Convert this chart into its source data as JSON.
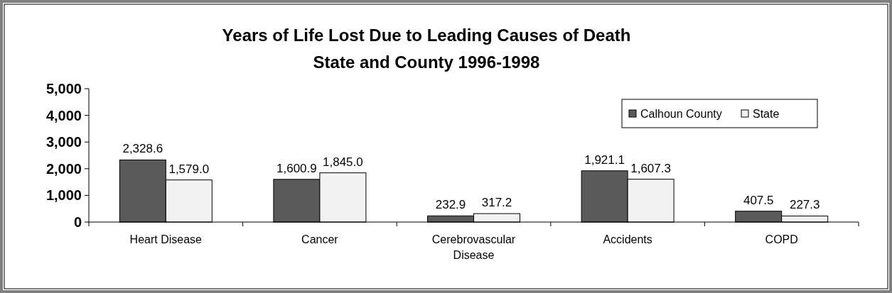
{
  "chart_data": {
    "type": "bar",
    "title": "Years of Life Lost Due to Leading Causes of Death",
    "subtitle": "State and County 1996-1998",
    "categories": [
      "Heart Disease",
      "Cancer",
      "Cerebrovascular Disease",
      "Accidents",
      "COPD"
    ],
    "series": [
      {
        "name": "Calhoun County",
        "color": "#5a5a5a",
        "values": [
          2328.6,
          1600.9,
          232.9,
          1921.1,
          407.5
        ],
        "value_labels": [
          "2,328.6",
          "1,600.9",
          "232.9",
          "1,921.1",
          "407.5"
        ]
      },
      {
        "name": "State",
        "color": "#f2f2f2",
        "values": [
          1579.0,
          1845.0,
          317.2,
          1607.3,
          227.3
        ],
        "value_labels": [
          "1,579.0",
          "1,845.0",
          "317.2",
          "1,607.3",
          "227.3"
        ]
      }
    ],
    "ylim": [
      0,
      5000
    ],
    "yticks": [
      0,
      {
        "value": 1000,
        "label": "1,000"
      },
      {
        "value": 2000,
        "label": "2,000"
      },
      {
        "value": 3000,
        "label": "3,000"
      },
      {
        "value": 4000,
        "label": "4,000"
      },
      {
        "value": 5000,
        "label": "5,000"
      }
    ],
    "legend": "top right",
    "grid": false
  }
}
